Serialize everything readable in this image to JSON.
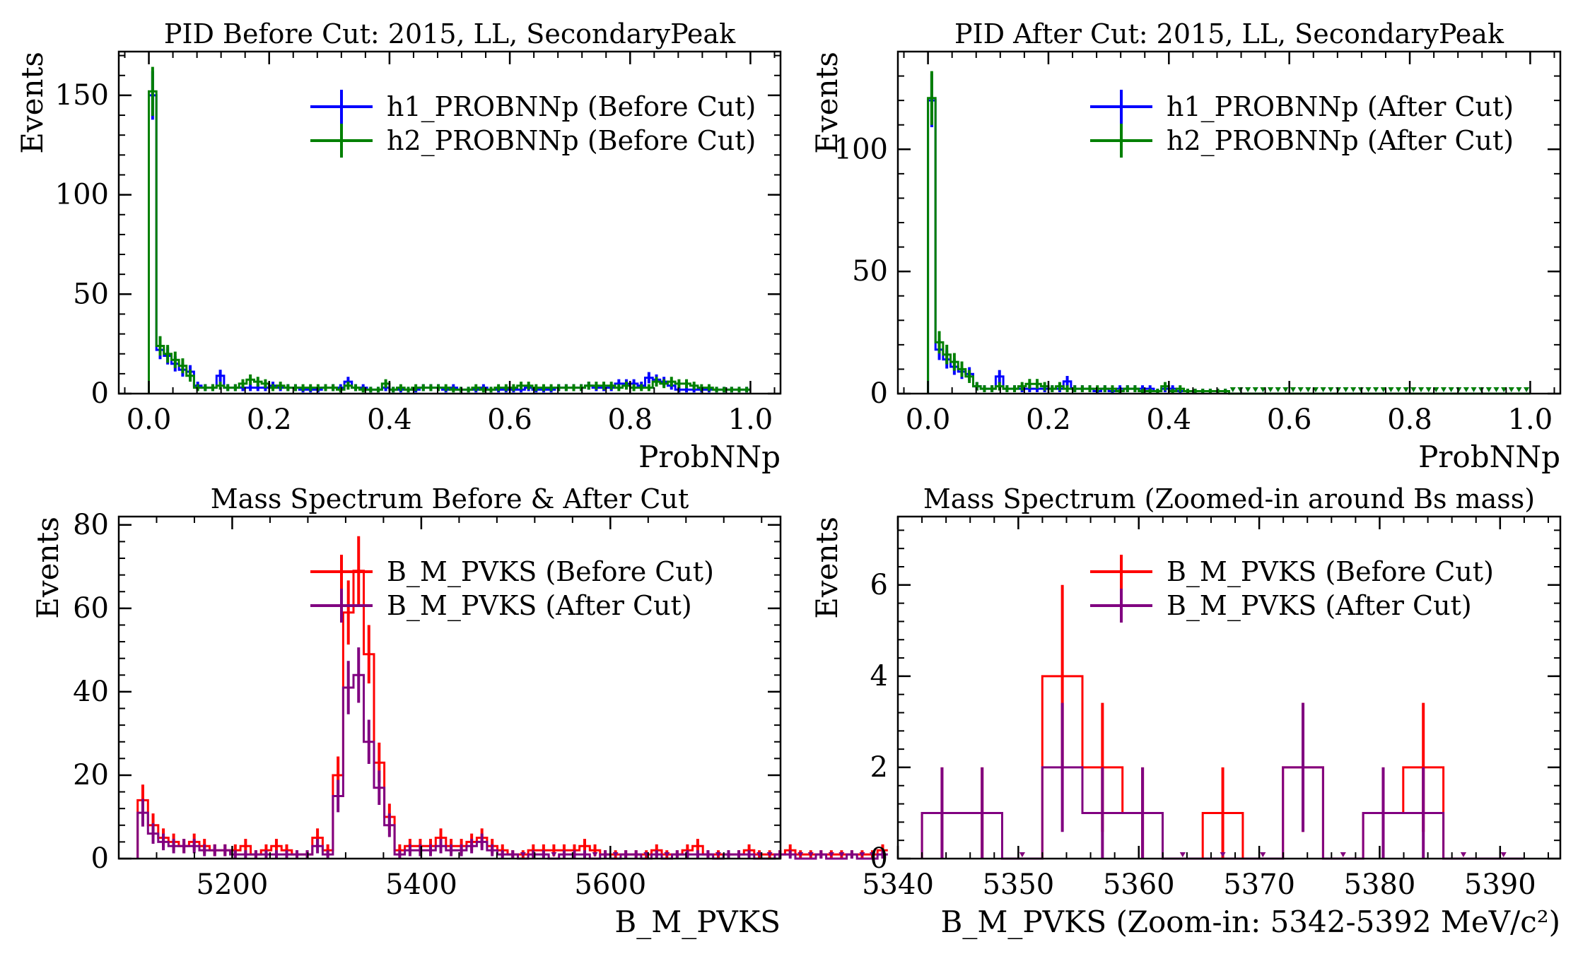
{
  "chart_data": [
    {
      "type": "histogram",
      "title": "PID Before Cut: 2015, LL, SecondaryPeak",
      "xlabel": "ProbNNp",
      "ylabel": "Events",
      "xlim": [
        -0.05,
        1.05
      ],
      "ylim": [
        0,
        172
      ],
      "xticks": [
        0.0,
        0.2,
        0.4,
        0.6,
        0.8,
        1.0
      ],
      "xtick_labels": [
        "0.0",
        "0.2",
        "0.4",
        "0.6",
        "0.8",
        "1.0"
      ],
      "yticks": [
        0,
        50,
        100,
        150
      ],
      "ytick_labels": [
        "0",
        "50",
        "100",
        "150"
      ],
      "legend_position": "top-right",
      "bin_start": 0.0,
      "bin_width": 0.0125,
      "series": [
        {
          "name": "h1_PROBNNp (Before Cut)",
          "color": "#0000ff",
          "values": [
            150,
            22,
            19,
            15,
            12,
            11,
            4,
            3,
            3,
            9,
            3,
            3,
            3,
            3,
            3,
            3,
            4,
            3,
            3,
            3,
            2,
            2,
            2,
            3,
            3,
            3,
            6,
            3,
            3,
            2,
            2,
            3,
            2,
            2,
            2,
            2,
            3,
            3,
            3,
            2,
            3,
            2,
            2,
            2,
            3,
            2,
            2,
            2,
            2,
            2,
            3,
            2,
            2,
            2,
            3,
            3,
            3,
            3,
            4,
            3,
            3,
            3,
            5,
            5,
            5,
            4,
            8,
            7,
            6,
            4,
            2,
            2,
            2,
            2,
            2,
            2,
            2,
            2,
            2,
            2
          ]
        },
        {
          "name": "h2_PROBNNp (Before Cut)",
          "color": "#008000",
          "values": [
            152,
            24,
            20,
            17,
            14,
            9,
            3,
            3,
            3,
            4,
            3,
            3,
            5,
            7,
            6,
            5,
            3,
            4,
            3,
            3,
            3,
            3,
            3,
            3,
            3,
            2,
            4,
            3,
            2,
            2,
            2,
            5,
            2,
            3,
            2,
            3,
            3,
            3,
            3,
            3,
            2,
            2,
            2,
            3,
            2,
            2,
            3,
            3,
            3,
            4,
            4,
            3,
            3,
            3,
            3,
            3,
            3,
            3,
            4,
            4,
            4,
            4,
            3,
            4,
            3,
            3,
            3,
            6,
            5,
            6,
            5,
            5,
            4,
            3,
            3,
            2,
            2,
            2,
            2,
            2
          ]
        }
      ]
    },
    {
      "type": "histogram",
      "title": "PID After Cut: 2015, LL, SecondaryPeak",
      "xlabel": "ProbNNp",
      "ylabel": "Events",
      "xlim": [
        -0.05,
        1.05
      ],
      "ylim": [
        0,
        140
      ],
      "xticks": [
        0.0,
        0.2,
        0.4,
        0.6,
        0.8,
        1.0
      ],
      "xtick_labels": [
        "0.0",
        "0.2",
        "0.4",
        "0.6",
        "0.8",
        "1.0"
      ],
      "yticks": [
        0,
        50,
        100
      ],
      "ytick_labels": [
        "0",
        "50",
        "100"
      ],
      "legend_position": "top-right",
      "bin_start": 0.0,
      "bin_width": 0.0125,
      "series": [
        {
          "name": "h1_PROBNNp (After Cut)",
          "color": "#0000ff",
          "values": [
            120,
            18,
            14,
            11,
            9,
            8,
            3,
            2,
            2,
            7,
            2,
            2,
            2,
            2,
            2,
            2,
            2,
            2,
            5,
            2,
            2,
            2,
            1,
            2,
            1,
            2,
            2,
            2,
            2,
            2,
            1,
            2,
            2,
            1,
            1,
            1,
            1,
            1,
            1,
            1,
            0,
            0,
            0,
            0,
            0,
            0,
            0,
            0,
            0,
            0,
            0,
            0,
            0,
            0,
            0,
            0,
            0,
            0,
            0,
            0,
            0,
            0,
            0,
            0,
            0,
            0,
            0,
            0,
            0,
            0,
            0,
            0,
            0,
            0,
            0,
            0,
            0,
            0,
            0,
            0
          ]
        },
        {
          "name": "h2_PROBNNp (After Cut)",
          "color": "#008000",
          "values": [
            121,
            21,
            16,
            13,
            10,
            7,
            3,
            2,
            2,
            3,
            2,
            2,
            3,
            4,
            4,
            3,
            2,
            3,
            2,
            2,
            2,
            2,
            2,
            2,
            2,
            1,
            2,
            2,
            1,
            1,
            1,
            3,
            1,
            2,
            1,
            1,
            1,
            1,
            1,
            1,
            0,
            0,
            0,
            0,
            0,
            0,
            0,
            0,
            0,
            0,
            0,
            0,
            0,
            0,
            0,
            0,
            0,
            0,
            0,
            0,
            0,
            0,
            0,
            0,
            0,
            0,
            0,
            0,
            0,
            0,
            0,
            0,
            0,
            0,
            0,
            0,
            0,
            0,
            0,
            0
          ]
        }
      ]
    },
    {
      "type": "histogram",
      "title": "Mass Spectrum Before & After Cut",
      "xlabel": "B_M_PVKS",
      "ylabel": "Events",
      "xlim": [
        5080,
        5780
      ],
      "ylim": [
        0,
        82
      ],
      "xticks": [
        5200,
        5400,
        5600
      ],
      "xtick_labels": [
        "5200",
        "5400",
        "5600"
      ],
      "yticks": [
        0,
        20,
        40,
        60,
        80
      ],
      "ytick_labels": [
        "0",
        "20",
        "40",
        "60",
        "80"
      ],
      "legend_position": "top-right",
      "bin_start": 5100,
      "bin_width": 10.87,
      "series": [
        {
          "name": "B_M_PVKS (Before Cut)",
          "color": "#ff0000",
          "values": [
            14,
            8,
            5,
            4,
            3,
            4,
            3,
            2,
            2,
            2,
            3,
            1,
            2,
            3,
            2,
            1,
            1,
            5,
            2,
            20,
            59,
            69,
            49,
            23,
            10,
            2,
            3,
            3,
            3,
            5,
            3,
            3,
            4,
            5,
            3,
            2,
            1,
            1,
            2,
            2,
            2,
            2,
            2,
            3,
            2,
            1,
            1,
            1,
            1,
            1,
            2,
            1,
            1,
            2,
            3,
            1,
            1,
            1,
            1,
            2,
            1,
            1,
            1,
            2,
            1,
            1,
            1,
            1,
            1,
            1,
            1,
            1,
            2
          ]
        },
        {
          "name": "B_M_PVKS (After Cut)",
          "color": "#800080",
          "values": [
            11,
            6,
            4,
            3,
            3,
            3,
            2,
            2,
            2,
            1,
            1,
            1,
            1,
            1,
            1,
            1,
            1,
            3,
            1,
            15,
            41,
            44,
            28,
            17,
            8,
            1,
            2,
            2,
            2,
            3,
            2,
            2,
            3,
            4,
            2,
            1,
            1,
            0,
            1,
            1,
            0,
            1,
            1,
            1,
            0,
            1,
            0,
            1,
            1,
            0,
            1,
            0,
            1,
            1,
            1,
            1,
            0,
            1,
            1,
            1,
            0,
            0,
            1,
            1,
            0,
            0,
            1,
            0,
            0,
            1,
            0,
            0,
            1
          ]
        }
      ]
    },
    {
      "type": "histogram",
      "title": "Mass Spectrum (Zoomed-in around Bs mass)",
      "xlabel": "B_M_PVKS (Zoom-in: 5342-5392 MeV/c²)",
      "ylabel": "Events",
      "xlim": [
        5340,
        5395
      ],
      "ylim": [
        0,
        7.5
      ],
      "xticks": [
        5340,
        5350,
        5360,
        5370,
        5380,
        5390
      ],
      "xtick_labels": [
        "5340",
        "5350",
        "5360",
        "5370",
        "5380",
        "5390"
      ],
      "yticks": [
        0,
        2,
        4,
        6
      ],
      "ytick_labels": [
        "0",
        "2",
        "4",
        "6"
      ],
      "legend_position": "top-right",
      "bin_start": 5342,
      "bin_width": 3.33,
      "series": [
        {
          "name": "B_M_PVKS (Before Cut)",
          "color": "#ff0000",
          "values": [
            1,
            1,
            0,
            4,
            2,
            1,
            0,
            1,
            0,
            2,
            0,
            1,
            2,
            0,
            0
          ]
        },
        {
          "name": "B_M_PVKS (After Cut)",
          "color": "#800080",
          "values": [
            1,
            1,
            0,
            2,
            1,
            1,
            0,
            0,
            0,
            2,
            0,
            1,
            1,
            0,
            0
          ]
        }
      ]
    }
  ]
}
